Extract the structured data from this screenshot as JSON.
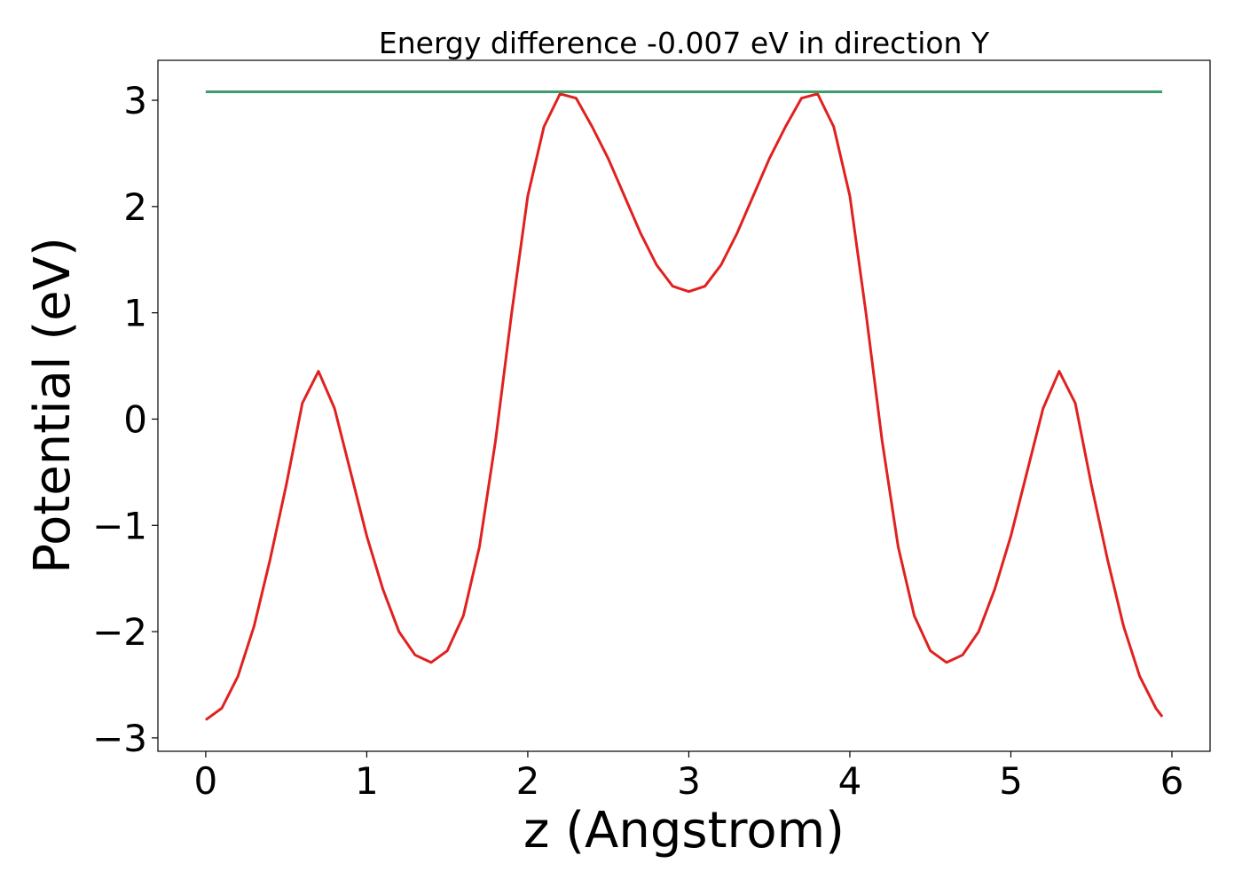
{
  "chart_data": {
    "type": "line",
    "title": "Energy difference -0.007 eV in direction Y",
    "xlabel": "z (Angstrom)",
    "ylabel": "Potential (eV)",
    "xlim": [
      -0.297,
      6.237
    ],
    "ylim": [
      -3.126,
      3.376
    ],
    "xticks": [
      0,
      1,
      2,
      3,
      4,
      5,
      6
    ],
    "yticks": [
      {
        "value": -3,
        "label": "−3"
      },
      {
        "value": -2,
        "label": "−2"
      },
      {
        "value": -1,
        "label": "−1"
      },
      0,
      1,
      2,
      3
    ],
    "grid": false,
    "series": [
      {
        "color": "#e0211f",
        "x": [
          0,
          0.1,
          0.2,
          0.3,
          0.4,
          0.5,
          0.6,
          0.7,
          0.8,
          0.9,
          1.0,
          1.1,
          1.2,
          1.3,
          1.4,
          1.5,
          1.6,
          1.7,
          1.8,
          1.9,
          2.0,
          2.1,
          2.2,
          2.3,
          2.4,
          2.5,
          2.6,
          2.7,
          2.8,
          2.9,
          3.0,
          3.1,
          3.2,
          3.3,
          3.4,
          3.5,
          3.6,
          3.7,
          3.8,
          3.9,
          4.0,
          4.1,
          4.2,
          4.3,
          4.4,
          4.5,
          4.6,
          4.7,
          4.8,
          4.9,
          5.0,
          5.1,
          5.2,
          5.3,
          5.4,
          5.5,
          5.6,
          5.7,
          5.8,
          5.9,
          5.94
        ],
        "values": [
          -2.83,
          -2.72,
          -2.42,
          -1.95,
          -1.32,
          -0.62,
          0.15,
          0.45,
          0.1,
          -0.5,
          -1.1,
          -1.6,
          -2.0,
          -2.22,
          -2.29,
          -2.18,
          -1.85,
          -1.2,
          -0.2,
          1.0,
          2.1,
          2.75,
          3.06,
          3.02,
          2.75,
          2.45,
          2.1,
          1.75,
          1.45,
          1.25,
          1.2,
          1.25,
          1.45,
          1.75,
          2.1,
          2.45,
          2.75,
          3.02,
          3.06,
          2.75,
          2.1,
          1.0,
          -0.2,
          -1.2,
          -1.85,
          -2.18,
          -2.29,
          -2.22,
          -2.0,
          -1.6,
          -1.1,
          -0.5,
          0.1,
          0.45,
          0.15,
          -0.62,
          -1.32,
          -1.95,
          -2.42,
          -2.72,
          -2.8
        ]
      },
      {
        "color": "#3c9e6c",
        "x": [
          0,
          5.94
        ],
        "values": [
          3.08,
          3.08
        ]
      }
    ]
  }
}
